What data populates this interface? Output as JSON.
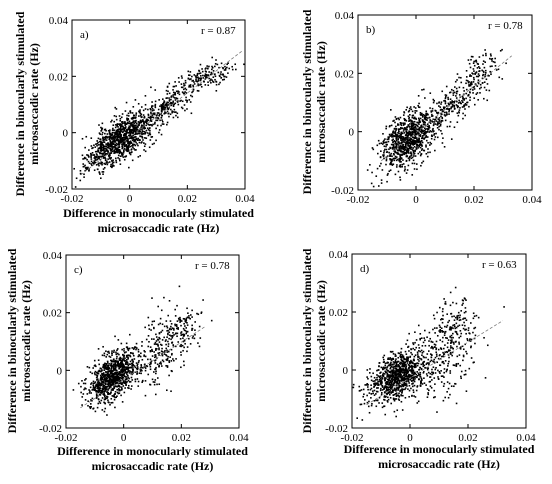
{
  "chart_data": [
    {
      "type": "scatter",
      "panel_label": "a)",
      "annotation": "r = 0.87",
      "xlabel": [
        "Difference in monocularly stimulated",
        "microsaccadic rate (Hz)"
      ],
      "ylabel": [
        "Difference in binocularly stimulated",
        "microsaccadic rate (Hz)"
      ],
      "xlim": [
        -0.02,
        0.04
      ],
      "ylim": [
        -0.02,
        0.04
      ],
      "xticks": [
        -0.02,
        0,
        0.02,
        0.04
      ],
      "yticks": [
        -0.02,
        0,
        0.02,
        0.04
      ],
      "xtick_labels": [
        "-0.02",
        "0",
        "0.02",
        "0.04"
      ],
      "ytick_labels": [
        "-0.02",
        "0",
        "0.02",
        "0.04"
      ],
      "fit_line": [
        [
          -0.017,
          -0.015
        ],
        [
          0.039,
          0.029
        ]
      ],
      "clusters": [
        {
          "cx": -0.003,
          "cy": -0.002,
          "sx": 0.005,
          "sy": 0.0045,
          "rho": 0.55,
          "n": 900
        },
        {
          "cx": 0.012,
          "cy": 0.009,
          "sx": 0.006,
          "sy": 0.005,
          "rho": 0.8,
          "n": 260
        },
        {
          "cx": 0.027,
          "cy": 0.02,
          "sx": 0.005,
          "sy": 0.0025,
          "rho": 0.5,
          "n": 140
        },
        {
          "cx": -0.012,
          "cy": -0.01,
          "sx": 0.003,
          "sy": 0.003,
          "rho": 0.6,
          "n": 80
        }
      ],
      "seed": 11,
      "grid": false,
      "marker_color": "#000000",
      "fit_color": "#777777"
    },
    {
      "type": "scatter",
      "panel_label": "b)",
      "annotation": "r = 0.78",
      "xlabel": [],
      "ylabel": [
        "Difference in binocularly stimulated",
        "microsaccadic rate (Hz)"
      ],
      "xlim": [
        -0.02,
        0.04
      ],
      "ylim": [
        -0.02,
        0.04
      ],
      "xticks": [
        -0.02,
        0,
        0.02,
        0.04
      ],
      "yticks": [
        -0.02,
        0,
        0.02,
        0.04
      ],
      "xtick_labels": [
        "-0.02",
        "0",
        "0.02",
        "0.04"
      ],
      "ytick_labels": [
        "-0.02",
        "0",
        "0.02",
        "0.04"
      ],
      "fit_line": [
        [
          -0.012,
          -0.01
        ],
        [
          0.033,
          0.026
        ]
      ],
      "clusters": [
        {
          "cx": -0.003,
          "cy": -0.003,
          "sx": 0.0045,
          "sy": 0.005,
          "rho": 0.45,
          "n": 850
        },
        {
          "cx": 0.012,
          "cy": 0.009,
          "sx": 0.006,
          "sy": 0.005,
          "rho": 0.75,
          "n": 220
        },
        {
          "cx": 0.022,
          "cy": 0.02,
          "sx": 0.004,
          "sy": 0.004,
          "rho": 0.5,
          "n": 110
        }
      ],
      "seed": 23,
      "grid": false,
      "marker_color": "#000000",
      "fit_color": "#777777"
    },
    {
      "type": "scatter",
      "panel_label": "c)",
      "annotation": "r = 0.78",
      "xlabel": [
        "Difference in monocularly stimulated",
        "microsaccadic rate (Hz)"
      ],
      "ylabel": [
        "Difference in binocularly stimulated",
        "microsaccadic rate (Hz)"
      ],
      "xlim": [
        -0.02,
        0.04
      ],
      "ylim": [
        -0.02,
        0.04
      ],
      "xticks": [
        -0.02,
        0,
        0.02,
        0.04
      ],
      "yticks": [
        -0.02,
        0,
        0.02,
        0.04
      ],
      "xtick_labels": [
        "-0.02",
        "0",
        "0.02",
        "0.04"
      ],
      "ytick_labels": [
        "-0.02",
        "0",
        "0.02",
        "0.04"
      ],
      "fit_line": [
        [
          -0.015,
          -0.013
        ],
        [
          0.028,
          0.015
        ]
      ],
      "clusters": [
        {
          "cx": -0.004,
          "cy": -0.002,
          "sx": 0.004,
          "sy": 0.0045,
          "rho": 0.5,
          "n": 900
        },
        {
          "cx": 0.012,
          "cy": 0.006,
          "sx": 0.006,
          "sy": 0.007,
          "rho": 0.5,
          "n": 250
        },
        {
          "cx": 0.02,
          "cy": 0.015,
          "sx": 0.004,
          "sy": 0.004,
          "rho": 0.3,
          "n": 100
        }
      ],
      "seed": 37,
      "grid": false,
      "marker_color": "#000000",
      "fit_color": "#777777"
    },
    {
      "type": "scatter",
      "panel_label": "d)",
      "annotation": "r = 0.63",
      "xlabel": [
        "Difference in monocularly stimulated",
        "microsaccadic rate (Hz)"
      ],
      "ylabel": [
        "Difference in binocularly stimulated",
        "microsaccadic rate (Hz)"
      ],
      "xlim": [
        -0.02,
        0.04
      ],
      "ylim": [
        -0.02,
        0.04
      ],
      "xticks": [
        -0.02,
        0,
        0.02,
        0.04
      ],
      "yticks": [
        -0.02,
        0,
        0.02,
        0.04
      ],
      "xtick_labels": [
        "-0.02",
        "0",
        "0.02",
        "0.04"
      ],
      "ytick_labels": [
        "-0.02",
        "0",
        "0.02",
        "0.04"
      ],
      "fit_line": [
        [
          -0.015,
          -0.012
        ],
        [
          0.032,
          0.017
        ]
      ],
      "clusters": [
        {
          "cx": -0.004,
          "cy": -0.002,
          "sx": 0.005,
          "sy": 0.0045,
          "rho": 0.45,
          "n": 900
        },
        {
          "cx": 0.012,
          "cy": 0.005,
          "sx": 0.006,
          "sy": 0.008,
          "rho": 0.35,
          "n": 250
        },
        {
          "cx": 0.015,
          "cy": 0.015,
          "sx": 0.004,
          "sy": 0.005,
          "rho": 0.2,
          "n": 110
        }
      ],
      "seed": 53,
      "grid": false,
      "marker_color": "#000000",
      "fit_color": "#777777"
    }
  ]
}
